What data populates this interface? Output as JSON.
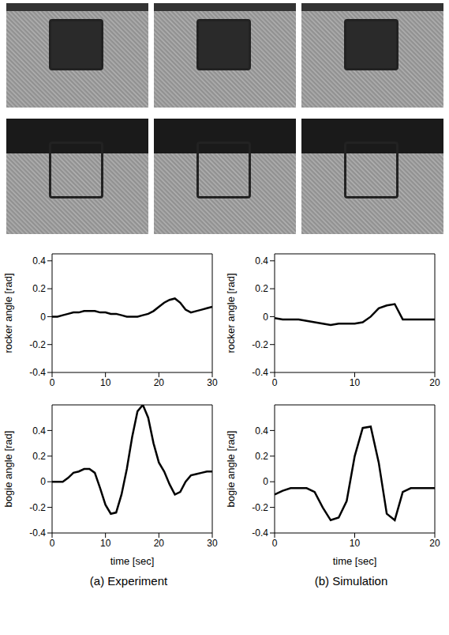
{
  "captions": [
    "(a) Experiment",
    "(b) Simulation"
  ],
  "chart_data": [
    {
      "type": "line",
      "ylabel": "rocker angle [rad]",
      "x": [
        0,
        1,
        2,
        3,
        4,
        5,
        6,
        7,
        8,
        9,
        10,
        11,
        12,
        13,
        14,
        15,
        16,
        17,
        18,
        19,
        20,
        21,
        22,
        23,
        24,
        25,
        26,
        27,
        28,
        29,
        30
      ],
      "series": [
        {
          "name": "rocker angle",
          "color": "#000000",
          "values": [
            0,
            0,
            0.01,
            0.02,
            0.03,
            0.03,
            0.04,
            0.04,
            0.04,
            0.03,
            0.03,
            0.02,
            0.02,
            0.01,
            0,
            0,
            0,
            0.01,
            0.02,
            0.04,
            0.07,
            0.1,
            0.12,
            0.13,
            0.1,
            0.05,
            0.03,
            0.04,
            0.05,
            0.06,
            0.07
          ]
        }
      ],
      "xlim": [
        0,
        30
      ],
      "xticks": [
        0,
        10,
        20,
        30
      ],
      "ylim": [
        -0.4,
        0.45
      ],
      "yticks": [
        -0.4,
        -0.2,
        0,
        0.2,
        0.4
      ],
      "grid": false
    },
    {
      "type": "line",
      "ylabel": "bogie angle [rad]",
      "xlabel": "time [sec]",
      "x": [
        0,
        1,
        2,
        3,
        4,
        5,
        6,
        7,
        8,
        9,
        10,
        11,
        12,
        13,
        14,
        15,
        16,
        17,
        18,
        19,
        20,
        21,
        22,
        23,
        24,
        25,
        26,
        27,
        28,
        29,
        30
      ],
      "series": [
        {
          "name": "bogie angle",
          "color": "#000000",
          "values": [
            0,
            0,
            0,
            0.03,
            0.07,
            0.08,
            0.1,
            0.1,
            0.07,
            -0.05,
            -0.18,
            -0.25,
            -0.24,
            -0.1,
            0.1,
            0.35,
            0.55,
            0.6,
            0.5,
            0.3,
            0.15,
            0.08,
            -0.02,
            -0.1,
            -0.08,
            0,
            0.05,
            0.06,
            0.07,
            0.08,
            0.08
          ]
        }
      ],
      "xlim": [
        0,
        30
      ],
      "xticks": [
        0,
        10,
        20,
        30
      ],
      "ylim": [
        -0.4,
        0.6
      ],
      "yticks": [
        -0.4,
        -0.2,
        0,
        0.2,
        0.4
      ],
      "grid": false
    },
    {
      "type": "line",
      "ylabel": "rocker angle [rad]",
      "x": [
        0,
        1,
        2,
        3,
        4,
        5,
        6,
        7,
        8,
        9,
        10,
        11,
        12,
        13,
        14,
        15,
        16,
        17,
        18,
        19,
        20
      ],
      "series": [
        {
          "name": "rocker angle",
          "color": "#000000",
          "values": [
            -0.01,
            -0.02,
            -0.02,
            -0.02,
            -0.03,
            -0.04,
            -0.05,
            -0.06,
            -0.05,
            -0.05,
            -0.05,
            -0.04,
            0,
            0.06,
            0.08,
            0.09,
            -0.02,
            -0.02,
            -0.02,
            -0.02,
            -0.02
          ]
        }
      ],
      "xlim": [
        0,
        20
      ],
      "xticks": [
        0,
        10,
        20
      ],
      "ylim": [
        -0.4,
        0.45
      ],
      "yticks": [
        -0.4,
        -0.2,
        0,
        0.2,
        0.4
      ],
      "grid": false
    },
    {
      "type": "line",
      "ylabel": "bogie angle [rad]",
      "xlabel": "time [sec]",
      "x": [
        0,
        1,
        2,
        3,
        4,
        5,
        6,
        7,
        8,
        9,
        10,
        11,
        12,
        13,
        14,
        15,
        16,
        17,
        18,
        19,
        20
      ],
      "series": [
        {
          "name": "bogie angle",
          "color": "#000000",
          "values": [
            -0.1,
            -0.07,
            -0.05,
            -0.05,
            -0.05,
            -0.08,
            -0.2,
            -0.3,
            -0.28,
            -0.15,
            0.2,
            0.42,
            0.43,
            0.15,
            -0.25,
            -0.3,
            -0.08,
            -0.05,
            -0.05,
            -0.05,
            -0.05
          ]
        }
      ],
      "xlim": [
        0,
        20
      ],
      "xticks": [
        0,
        10,
        20
      ],
      "ylim": [
        -0.4,
        0.6
      ],
      "yticks": [
        -0.4,
        -0.2,
        0,
        0.2,
        0.4
      ],
      "grid": false
    }
  ]
}
